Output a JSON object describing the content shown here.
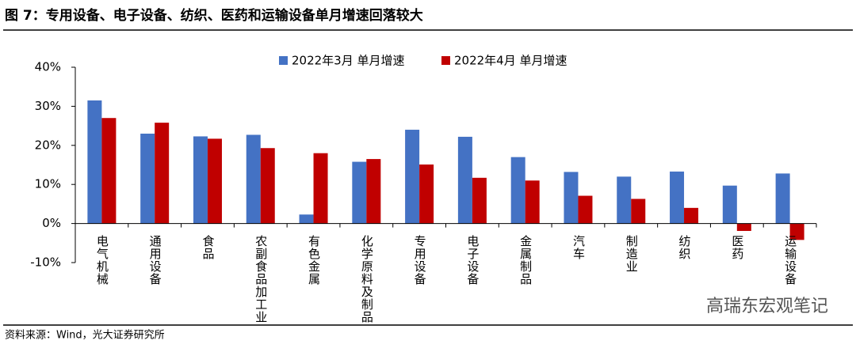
{
  "chart_data": {
    "type": "bar",
    "title": "图 7：专用设备、电子设备、纺织、医药和运输设备单月增速回落较大",
    "categories": [
      "电气机械",
      "通用设备",
      "食品",
      "农副食品加工业",
      "有色金属",
      "化学原料及制品",
      "专用设备",
      "电子设备",
      "金属制品",
      "汽车",
      "制造业",
      "纺织",
      "医药",
      "运输设备"
    ],
    "series": [
      {
        "name": "2022年3月 单月增速",
        "color": "#4472c4",
        "values": [
          31.5,
          23,
          22.3,
          22.7,
          2.3,
          15.8,
          24,
          22.2,
          17,
          13.2,
          12,
          13.3,
          9.7,
          12.8
        ]
      },
      {
        "name": "2022年4月 单月增速",
        "color": "#c00000",
        "values": [
          27,
          25.8,
          21.7,
          19.3,
          18,
          16.5,
          15.1,
          11.7,
          11,
          7.1,
          6.3,
          4,
          -1.9,
          -4.2
        ]
      }
    ],
    "ylim": [
      -10,
      40
    ],
    "yticks": [
      {
        "value": -10,
        "label": "-10%"
      },
      {
        "value": 0,
        "label": "0%"
      },
      {
        "value": 10,
        "label": "10%"
      },
      {
        "value": 20,
        "label": "20%"
      },
      {
        "value": 30,
        "label": "30%"
      },
      {
        "value": 40,
        "label": "40%"
      }
    ],
    "grid": false,
    "source": "资料来源：Wind，光大证券研究所",
    "watermark": "高瑞东宏观笔记"
  }
}
